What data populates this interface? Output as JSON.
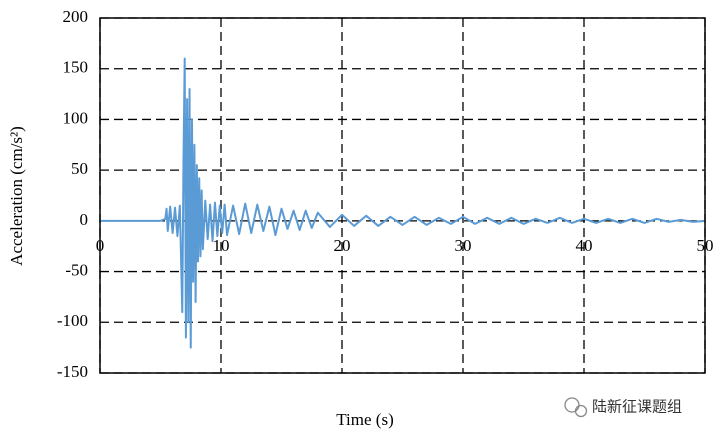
{
  "chart_data": {
    "type": "line",
    "x_label": "Time (s)",
    "y_label": "Acceleration (cm/s²)",
    "annotation": "陆新征课题组",
    "color": "#5b9bd5",
    "grid": true,
    "xlim": [
      0,
      50
    ],
    "xticks": [
      0,
      10,
      20,
      30,
      40,
      50
    ],
    "ylim": [
      -150,
      200
    ],
    "yticks": [
      -150,
      -100,
      -50,
      0,
      50,
      100,
      150,
      200
    ],
    "x": [
      0,
      5,
      5.4,
      5.5,
      5.6,
      5.8,
      6.0,
      6.2,
      6.4,
      6.6,
      6.8,
      6.9,
      7.0,
      7.1,
      7.2,
      7.3,
      7.4,
      7.5,
      7.6,
      7.7,
      7.8,
      7.9,
      8.0,
      8.1,
      8.2,
      8.3,
      8.4,
      8.5,
      8.7,
      8.9,
      9.1,
      9.3,
      9.5,
      9.7,
      9.9,
      10.1,
      10.3,
      10.5,
      11,
      11.5,
      12,
      12.5,
      13,
      13.5,
      14,
      14.5,
      15,
      15.5,
      16,
      16.5,
      17,
      17.5,
      18,
      19,
      20,
      21,
      22,
      23,
      24,
      25,
      26,
      27,
      28,
      29,
      30,
      31,
      32,
      33,
      34,
      35,
      36,
      37,
      38,
      39,
      40,
      41,
      42,
      43,
      44,
      45,
      46,
      47,
      48,
      49,
      50
    ],
    "values": [
      0,
      0,
      2,
      12,
      -10,
      14,
      -12,
      13,
      -15,
      15,
      -90,
      60,
      160,
      -115,
      120,
      -100,
      130,
      -125,
      100,
      -60,
      75,
      -80,
      55,
      -40,
      42,
      -35,
      30,
      -28,
      20,
      -18,
      16,
      -20,
      18,
      -15,
      15,
      -12,
      16,
      -14,
      15,
      -13,
      17,
      -12,
      16,
      -10,
      14,
      -14,
      12,
      -8,
      10,
      -9,
      10,
      -7,
      8,
      -6,
      6,
      -5,
      5,
      -5,
      4,
      -4,
      4,
      -4,
      3,
      -3,
      4,
      -3,
      3,
      -3,
      3,
      -3,
      2,
      -2,
      3,
      -2,
      2,
      -2,
      2,
      -2,
      2,
      -2,
      2,
      -1,
      1,
      -1,
      0
    ]
  }
}
